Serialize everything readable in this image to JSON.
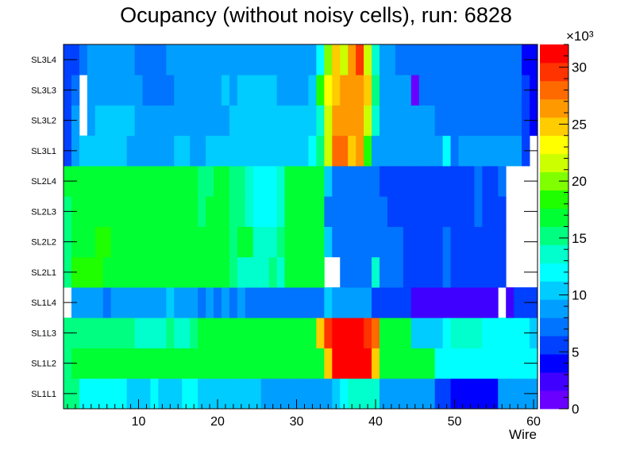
{
  "chart_data": {
    "type": "heatmap",
    "title": "Ocupancy (without noisy cells), run: 6828",
    "xlabel": "Wire",
    "ylabel": "",
    "x_range": [
      0.5,
      60.5
    ],
    "x_ticks": [
      10,
      20,
      30,
      40,
      50,
      60
    ],
    "y_categories": [
      "SL1L1",
      "SL1L2",
      "SL1L3",
      "SL1L4",
      "SL2L1",
      "SL2L2",
      "SL2L3",
      "SL2L4",
      "SL3L1",
      "SL3L2",
      "SL3L3",
      "SL3L4"
    ],
    "z_range": [
      0,
      32000
    ],
    "colorbar_ticks": [
      0,
      5,
      10,
      15,
      20,
      25,
      30
    ],
    "colorbar_exponent": "×10³",
    "palette": [
      "#6a00ff",
      "#4000ff",
      "#0000ff",
      "#0040ff",
      "#0073ff",
      "#009fff",
      "#00ccff",
      "#00ffff",
      "#00ffcc",
      "#00ff80",
      "#00ff33",
      "#1fff00",
      "#80ff00",
      "#ccff00",
      "#ffff00",
      "#ffcc00",
      "#ff9900",
      "#ff6a00",
      "#ff3300",
      "#ff0000"
    ],
    "rows": {
      "SL1L1": [
        14.5,
        14.5,
        12,
        12,
        12,
        12,
        12,
        12,
        11,
        11,
        11,
        12,
        11,
        11,
        11,
        12,
        12,
        11,
        11,
        11,
        11,
        11,
        11,
        11,
        11,
        9,
        9,
        9,
        9,
        9,
        9,
        9,
        9,
        9,
        11,
        12,
        13,
        13,
        14,
        14,
        8,
        8,
        8,
        8,
        8,
        8,
        8,
        6,
        5,
        4,
        4,
        4,
        4,
        4,
        4,
        8,
        8,
        9,
        9,
        8
      ],
      "SL1L2": [
        15.5,
        17,
        17,
        17,
        17,
        17,
        16,
        16,
        16,
        16,
        16,
        16,
        16,
        16,
        16,
        16,
        16,
        16,
        16,
        16,
        17,
        17,
        17,
        17,
        17,
        17,
        16,
        16,
        17,
        17,
        17,
        16,
        17,
        25,
        31,
        31,
        32,
        32,
        31,
        25,
        17,
        16,
        16,
        16,
        16,
        16,
        16,
        12,
        12,
        12,
        12,
        12,
        12,
        12,
        12,
        12,
        12,
        12,
        12,
        12
      ],
      "SL1L3": [
        15,
        15,
        15,
        15,
        15,
        15,
        15,
        15,
        15,
        14,
        13,
        14,
        13,
        15,
        14,
        14,
        15,
        16,
        16,
        16,
        17,
        17,
        16,
        16,
        16,
        16,
        16,
        16,
        16,
        16,
        16,
        16,
        25,
        29,
        31,
        31,
        31,
        31,
        30,
        28,
        16,
        16,
        16,
        16,
        11,
        11,
        11,
        11,
        12,
        13,
        13,
        13,
        13,
        12,
        12,
        12,
        12,
        12,
        12,
        11
      ],
      "SL1L4": [
        -1,
        8,
        8,
        8,
        8,
        7,
        8,
        8,
        8,
        8,
        8,
        8,
        8,
        10,
        8,
        8,
        8,
        7,
        8,
        7,
        8,
        7,
        8,
        7,
        7,
        7,
        7,
        7,
        7,
        7,
        7,
        7,
        7,
        10,
        8,
        8,
        8,
        8,
        8,
        5,
        5,
        5,
        5,
        5,
        3,
        3,
        3,
        3,
        3,
        3,
        3,
        3,
        3,
        3,
        3,
        -1,
        3,
        5,
        6,
        6
      ],
      "SL2L1": [
        15,
        18,
        18,
        18,
        18,
        17,
        17,
        16,
        17,
        16,
        16,
        16,
        16,
        16,
        16,
        16,
        16,
        16,
        16,
        16,
        16,
        15,
        14,
        14,
        14,
        14,
        15,
        14,
        17,
        16,
        17,
        16,
        17,
        -1,
        -1,
        7,
        7,
        7,
        7,
        13,
        7,
        7,
        7,
        5,
        5,
        5,
        5,
        5,
        7,
        5,
        5,
        5,
        5,
        5,
        5,
        5,
        -1,
        -1,
        -1,
        -1
      ],
      "SL2L2": [
        15,
        17,
        17,
        16,
        18,
        18,
        17,
        16,
        17,
        16,
        16,
        16,
        16,
        16,
        16,
        16,
        16,
        16,
        16,
        16,
        16,
        15,
        17,
        17,
        14,
        14,
        14,
        15,
        17,
        17,
        17,
        16,
        16,
        11,
        7,
        7,
        7,
        7,
        7,
        7,
        7,
        7,
        7,
        5,
        5,
        5,
        5,
        5,
        7,
        5,
        5,
        5,
        5,
        5,
        5,
        5,
        -1,
        -1,
        -1,
        -1
      ],
      "SL2L3": [
        15,
        17,
        17,
        16,
        17,
        17,
        16,
        16,
        16,
        16,
        16,
        16,
        16,
        16,
        16,
        16,
        16,
        15,
        16,
        16,
        16,
        15,
        15,
        14,
        12,
        12,
        12,
        14,
        17,
        16,
        17,
        16,
        16,
        7,
        7,
        7,
        7,
        7,
        7,
        7,
        7,
        5,
        5,
        5,
        5,
        5,
        5,
        5,
        5,
        5,
        5,
        5,
        7,
        5,
        5,
        5,
        -1,
        -1,
        -1,
        -1
      ],
      "SL2L4": [
        16,
        16,
        16,
        17,
        17,
        17,
        16,
        16,
        17,
        16,
        16,
        16,
        16,
        16,
        16,
        16,
        16,
        15,
        15,
        16,
        16,
        15,
        15,
        14,
        12,
        12,
        12,
        14,
        17,
        16,
        17,
        16,
        16,
        11,
        7,
        7,
        7,
        7,
        7,
        7,
        5,
        5,
        5,
        5,
        5,
        5,
        5,
        5,
        5,
        5,
        5,
        5,
        7,
        5,
        5,
        7,
        -1,
        -1,
        -1,
        -1
      ],
      "SL3L1": [
        6,
        9,
        11,
        11,
        11,
        11,
        11,
        11,
        8,
        8,
        8,
        8,
        8,
        8,
        11,
        11,
        8,
        8,
        11,
        11,
        11,
        11,
        11,
        11,
        11,
        11,
        11,
        11,
        11,
        11,
        11,
        12,
        15,
        22,
        28,
        28,
        24,
        26,
        18,
        9,
        9,
        8,
        8,
        8,
        8,
        8,
        8,
        8,
        12,
        7,
        8,
        8,
        8,
        8,
        8,
        8,
        8,
        8,
        6,
        -1
      ],
      "SL3L2": [
        5,
        9,
        -1,
        8,
        11,
        11,
        11,
        11,
        11,
        8,
        8,
        8,
        8,
        8,
        8,
        8,
        8,
        8,
        8,
        8,
        8,
        10,
        11,
        11,
        11,
        11,
        11,
        11,
        11,
        11,
        11,
        11,
        14,
        21,
        26,
        26,
        26,
        26,
        21,
        13,
        8,
        8,
        8,
        8,
        8,
        8,
        8,
        7,
        7,
        7,
        7,
        7,
        7,
        7,
        7,
        7,
        7,
        7,
        6,
        4
      ],
      "SL3L3": [
        6,
        7,
        -1,
        8,
        8,
        8,
        8,
        8,
        8,
        8,
        7,
        7,
        7,
        7,
        8,
        8,
        8,
        8,
        8,
        8,
        10,
        8,
        11,
        11,
        11,
        11,
        11,
        8,
        8,
        8,
        8,
        10,
        18,
        23,
        24,
        27,
        27,
        27,
        24,
        15,
        9,
        9,
        9,
        9,
        1,
        7,
        7,
        7,
        7,
        7,
        7,
        7,
        7,
        7,
        7,
        7,
        7,
        7,
        6,
        4
      ],
      "SL3L4": [
        6,
        5,
        7,
        8,
        8,
        8,
        8,
        8,
        8,
        7,
        7,
        7,
        7,
        8,
        8,
        8,
        8,
        8,
        8,
        8,
        8,
        8,
        8,
        8,
        8,
        8,
        8,
        8,
        8,
        8,
        8,
        8,
        12,
        20,
        25,
        22,
        27,
        30,
        22,
        14,
        8,
        8,
        7,
        7,
        7,
        7,
        7,
        7,
        7,
        7,
        7,
        7,
        7,
        7,
        7,
        7,
        7,
        7,
        4,
        4
      ]
    }
  }
}
